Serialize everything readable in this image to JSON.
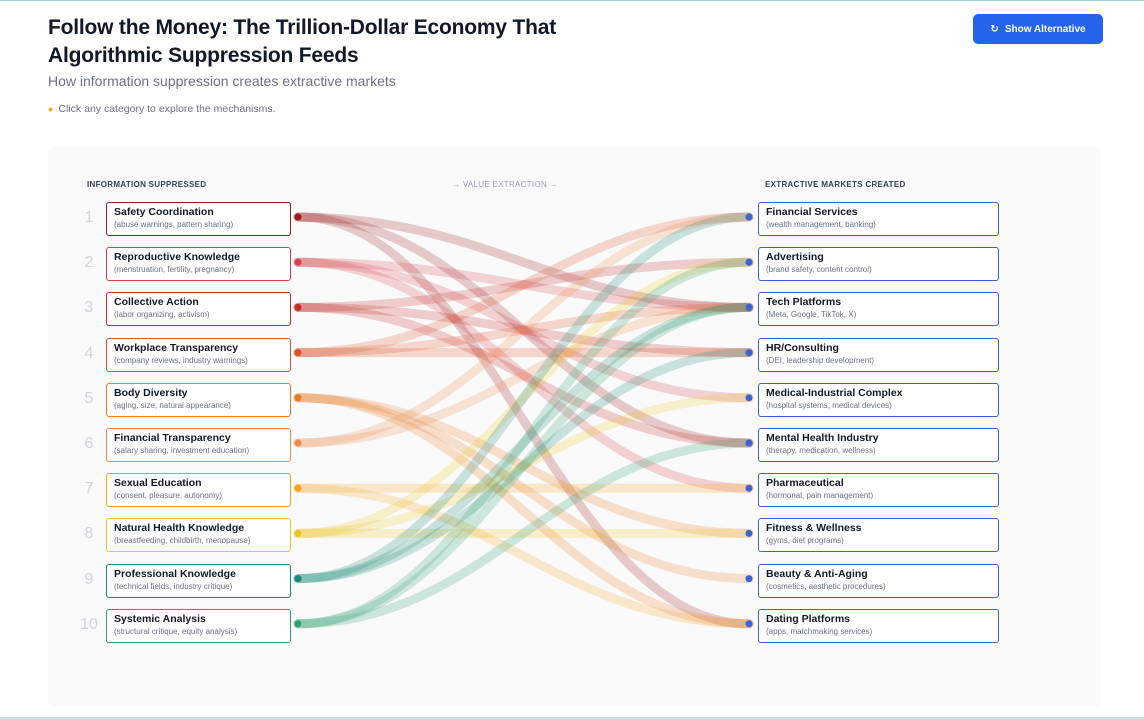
{
  "header": {
    "title": "Follow the Money: The Trillion-Dollar Economy That Algorithmic Suppression Feeds",
    "subtitle": "How information suppression creates extractive markets",
    "hint": "Click any category to explore the mechanisms.",
    "hint_icon": "lightbulb-icon",
    "alt_button_label": "Show Alternative",
    "alt_button_icon": "refresh-icon"
  },
  "diagram": {
    "left_header": "INFORMATION SUPPRESSED",
    "middle_header": "→ VALUE EXTRACTION →",
    "right_header": "EXTRACTIVE MARKETS CREATED",
    "sources": [
      {
        "num": "1",
        "name": "Safety Coordination",
        "desc": "(abuse warnings, pattern sharing)",
        "color": "#9b1c1c"
      },
      {
        "num": "2",
        "name": "Reproductive Knowledge",
        "desc": "(menstruation, fertility, pregnancy)",
        "color": "#d6404b"
      },
      {
        "num": "3",
        "name": "Collective Action",
        "desc": "(labor organizing, activism)",
        "color": "#c42b2b"
      },
      {
        "num": "4",
        "name": "Workplace Transparency",
        "desc": "(company reviews, industry warnings)",
        "color": "#d9542b"
      },
      {
        "num": "5",
        "name": "Body Diversity",
        "desc": "(aging, size, natural appearance)",
        "color": "#ea7a26"
      },
      {
        "num": "6",
        "name": "Financial Transparency",
        "desc": "(salary sharing, investment education)",
        "color": "#ef8a4a"
      },
      {
        "num": "7",
        "name": "Sexual Education",
        "desc": "(consent, pleasure, autonomy)",
        "color": "#f2a41f"
      },
      {
        "num": "8",
        "name": "Natural Health Knowledge",
        "desc": "(breastfeeding, childbirth, menopause)",
        "color": "#edc521"
      },
      {
        "num": "9",
        "name": "Professional Knowledge",
        "desc": "(technical fields, industry critique)",
        "color": "#168a74"
      },
      {
        "num": "10",
        "name": "Systemic Analysis",
        "desc": "(structural critique, equity analysis)",
        "color": "#2e9e6e"
      }
    ],
    "markets": [
      {
        "name": "Financial Services",
        "desc": "(wealth management, banking)"
      },
      {
        "name": "Advertising",
        "desc": "(brand safety, content control)"
      },
      {
        "name": "Tech Platforms",
        "desc": "(Meta, Google, TikTok, X)"
      },
      {
        "name": "HR/Consulting",
        "desc": "(DEI, leadership development)"
      },
      {
        "name": "Medical-Industrial Complex",
        "desc": "(hospital systems, medical devices)"
      },
      {
        "name": "Mental Health Industry",
        "desc": "(therapy, medication, wellness)"
      },
      {
        "name": "Pharmaceutical",
        "desc": "(hormonal, pain management)"
      },
      {
        "name": "Fitness & Wellness",
        "desc": "(gyms, diet programs)"
      },
      {
        "name": "Beauty & Anti-Aging",
        "desc": "(cosmetics, aesthetic procedures)"
      },
      {
        "name": "Dating Platforms",
        "desc": "(apps, matchmaking services)"
      }
    ],
    "market_color": "#3b63d1",
    "flows": [
      {
        "from": 0,
        "to": 5
      },
      {
        "from": 0,
        "to": 9
      },
      {
        "from": 0,
        "to": 2
      },
      {
        "from": 1,
        "to": 4
      },
      {
        "from": 1,
        "to": 6
      },
      {
        "from": 1,
        "to": 2
      },
      {
        "from": 2,
        "to": 3
      },
      {
        "from": 2,
        "to": 1
      },
      {
        "from": 2,
        "to": 5
      },
      {
        "from": 3,
        "to": 3
      },
      {
        "from": 3,
        "to": 2
      },
      {
        "from": 3,
        "to": 0
      },
      {
        "from": 4,
        "to": 8
      },
      {
        "from": 4,
        "to": 7
      },
      {
        "from": 4,
        "to": 9
      },
      {
        "from": 5,
        "to": 0
      },
      {
        "from": 5,
        "to": 2
      },
      {
        "from": 6,
        "to": 9
      },
      {
        "from": 6,
        "to": 6
      },
      {
        "from": 7,
        "to": 4
      },
      {
        "from": 7,
        "to": 7
      },
      {
        "from": 7,
        "to": 1
      },
      {
        "from": 8,
        "to": 3
      },
      {
        "from": 8,
        "to": 0
      },
      {
        "from": 8,
        "to": 2
      },
      {
        "from": 9,
        "to": 5
      },
      {
        "from": 9,
        "to": 2
      },
      {
        "from": 9,
        "to": 1
      }
    ]
  }
}
